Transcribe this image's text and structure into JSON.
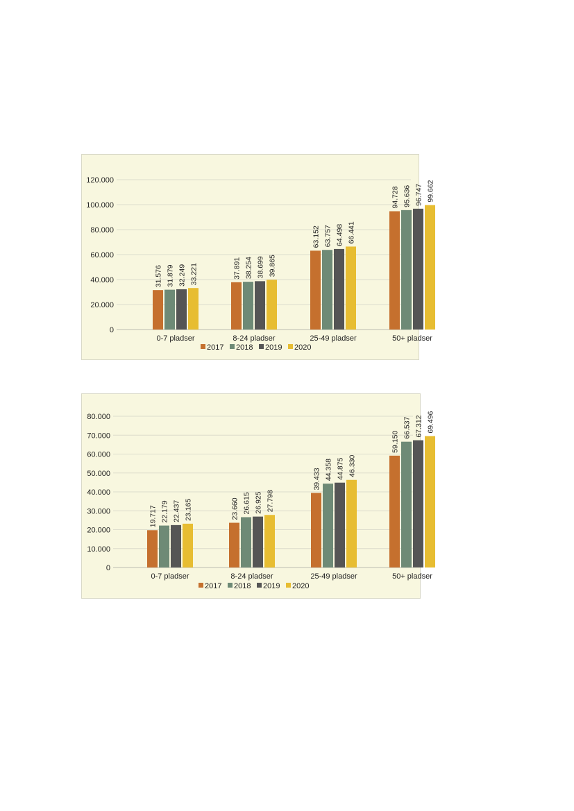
{
  "colors": {
    "2017": "#c5702e",
    "2018": "#6e8a76",
    "2019": "#555555",
    "2020": "#e7bd32"
  },
  "chart_data": [
    {
      "type": "bar",
      "categories": [
        "0-7 pladser",
        "8-24 pladser",
        "25-49 pladser",
        "50+ pladser"
      ],
      "series": [
        {
          "name": "2017",
          "values": [
            31576,
            37891,
            63152,
            94728
          ],
          "labels": [
            "31.576",
            "37.891",
            "63.152",
            "94.728"
          ]
        },
        {
          "name": "2018",
          "values": [
            31879,
            38254,
            63757,
            95636
          ],
          "labels": [
            "31.879",
            "38.254",
            "63.757",
            "95.636"
          ]
        },
        {
          "name": "2019",
          "values": [
            32249,
            38699,
            64498,
            96747
          ],
          "labels": [
            "32.249",
            "38.699",
            "64.498",
            "96.747"
          ]
        },
        {
          "name": "2020",
          "values": [
            33221,
            39865,
            66441,
            99662
          ],
          "labels": [
            "33.221",
            "39.865",
            "66.441",
            "99.662"
          ]
        }
      ],
      "ylim": [
        0,
        120000
      ],
      "yticks": [
        0,
        20000,
        40000,
        60000,
        80000,
        100000,
        120000
      ],
      "ytick_labels": [
        "0",
        "20.000",
        "40.000",
        "60.000",
        "80.000",
        "100.000",
        "120.000"
      ],
      "grid": true,
      "legend": "bottom"
    },
    {
      "type": "bar",
      "categories": [
        "0-7 pladser",
        "8-24 pladser",
        "25-49 pladser",
        "50+ pladser"
      ],
      "series": [
        {
          "name": "2017",
          "values": [
            19717,
            23660,
            39433,
            59150
          ],
          "labels": [
            "19.717",
            "23.660",
            "39.433",
            "59.150"
          ]
        },
        {
          "name": "2018",
          "values": [
            22179,
            26615,
            44358,
            66537
          ],
          "labels": [
            "22.179",
            "26.615",
            "44.358",
            "66.537"
          ]
        },
        {
          "name": "2019",
          "values": [
            22437,
            26925,
            44875,
            67312
          ],
          "labels": [
            "22.437",
            "26.925",
            "44.875",
            "67.312"
          ]
        },
        {
          "name": "2020",
          "values": [
            23165,
            27798,
            46330,
            69496
          ],
          "labels": [
            "23.165",
            "27.798",
            "46.330",
            "69.496"
          ]
        }
      ],
      "ylim": [
        0,
        80000
      ],
      "yticks": [
        0,
        10000,
        20000,
        30000,
        40000,
        50000,
        60000,
        70000,
        80000
      ],
      "ytick_labels": [
        "0",
        "10.000",
        "20.000",
        "30.000",
        "40.000",
        "50.000",
        "60.000",
        "70.000",
        "80.000"
      ],
      "grid": true,
      "legend": "bottom"
    }
  ]
}
